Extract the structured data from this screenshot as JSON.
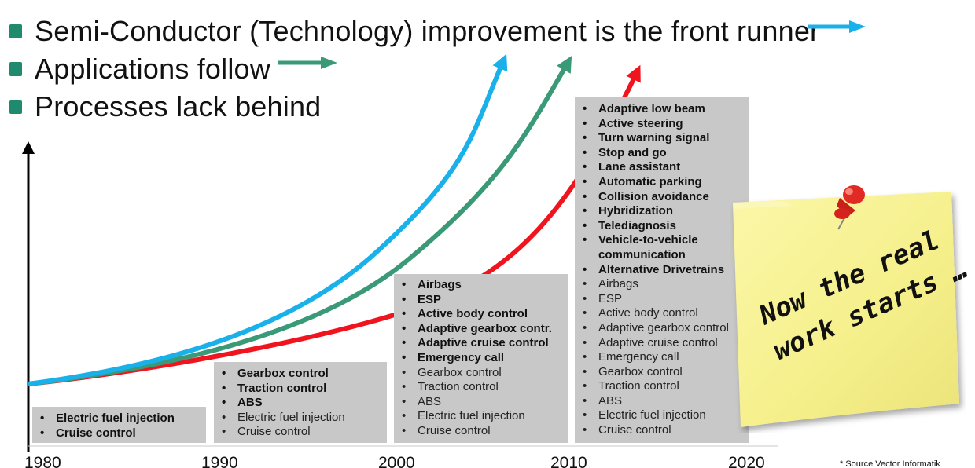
{
  "bullets": [
    {
      "text": "Semi-Conductor (Technology) improvement is the front runner",
      "arrow_color": "#1ab0ea"
    },
    {
      "text": "Applications follow",
      "arrow_color": "#3a9a78"
    },
    {
      "text": "Processes lack behind",
      "arrow_color": ""
    }
  ],
  "colors": {
    "bullet": "#1f8a6e",
    "technology": "#1ab0ea",
    "applications": "#3a9a78",
    "processes": "#f0141e",
    "box": "#c8c8c8",
    "note": "#f7f296"
  },
  "eras": [
    {
      "year": "1980",
      "items": [
        {
          "label": "Electric fuel injection",
          "bold": true
        },
        {
          "label": "Cruise control",
          "bold": true
        }
      ]
    },
    {
      "year": "1990",
      "items": [
        {
          "label": "Gearbox control",
          "bold": true
        },
        {
          "label": "Traction control",
          "bold": true
        },
        {
          "label": "ABS",
          "bold": true
        },
        {
          "label": "Electric fuel injection",
          "bold": false
        },
        {
          "label": "Cruise control",
          "bold": false
        }
      ]
    },
    {
      "year": "2000",
      "items": [
        {
          "label": "Airbags",
          "bold": true
        },
        {
          "label": "ESP",
          "bold": true
        },
        {
          "label": "Active body control",
          "bold": true
        },
        {
          "label": "Adaptive gearbox contr.",
          "bold": true
        },
        {
          "label": "Adaptive cruise control",
          "bold": true
        },
        {
          "label": "Emergency call",
          "bold": true
        },
        {
          "label": "Gearbox control",
          "bold": false
        },
        {
          "label": "Traction control",
          "bold": false
        },
        {
          "label": "ABS",
          "bold": false
        },
        {
          "label": "Electric fuel injection",
          "bold": false
        },
        {
          "label": "Cruise control",
          "bold": false
        }
      ]
    },
    {
      "year": "2010",
      "items": [
        {
          "label": "Adaptive low beam",
          "bold": true
        },
        {
          "label": "Active steering",
          "bold": true
        },
        {
          "label": "Turn warning signal",
          "bold": true
        },
        {
          "label": "Stop and go",
          "bold": true
        },
        {
          "label": "Lane assistant",
          "bold": true
        },
        {
          "label": "Automatic parking",
          "bold": true
        },
        {
          "label": "Collision avoidance",
          "bold": true
        },
        {
          "label": "Hybridization",
          "bold": true
        },
        {
          "label": "Telediagnosis",
          "bold": true
        },
        {
          "label": "Vehicle-to-vehicle",
          "bold": true
        },
        {
          "label": "communication",
          "bold": true,
          "continuation": true
        },
        {
          "label": "Alternative Drivetrains",
          "bold": true
        },
        {
          "label": "Airbags",
          "bold": false
        },
        {
          "label": "ESP",
          "bold": false
        },
        {
          "label": "Active body control",
          "bold": false
        },
        {
          "label": "Adaptive gearbox control",
          "bold": false
        },
        {
          "label": "Adaptive cruise control",
          "bold": false
        },
        {
          "label": "Emergency call",
          "bold": false
        },
        {
          "label": "Gearbox control",
          "bold": false
        },
        {
          "label": "Traction control",
          "bold": false
        },
        {
          "label": "ABS",
          "bold": false
        },
        {
          "label": "Electric fuel injection",
          "bold": false
        },
        {
          "label": "Cruise control",
          "bold": false
        }
      ]
    }
  ],
  "final_year": "2020",
  "note": {
    "lines": [
      "Now the real",
      "work starts …"
    ]
  },
  "source": "* Source Vector Informatik"
}
